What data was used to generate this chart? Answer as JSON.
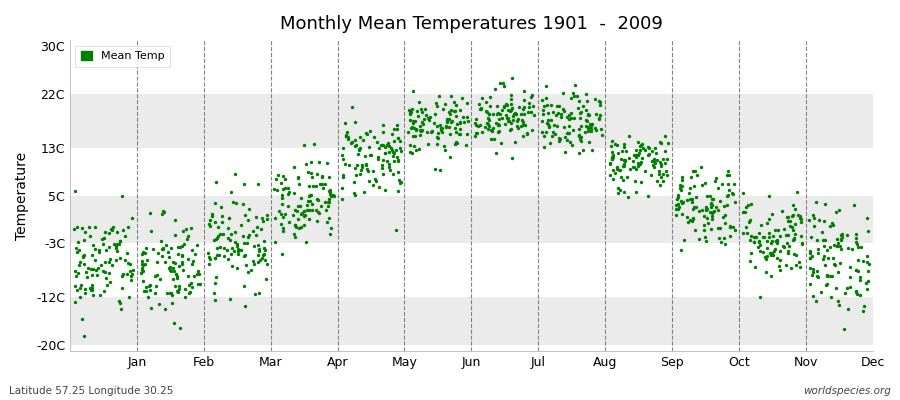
{
  "title": "Monthly Mean Temperatures 1901  -  2009",
  "ylabel": "Temperature",
  "yticks": [
    -20,
    -12,
    -3,
    5,
    13,
    22,
    30
  ],
  "ytick_labels": [
    "-20C",
    "-12C",
    "-3C",
    "5C",
    "13C",
    "22C",
    "30C"
  ],
  "ylim": [
    -21,
    31
  ],
  "months": [
    "Jan",
    "Feb",
    "Mar",
    "Apr",
    "May",
    "Jun",
    "Jul",
    "Aug",
    "Sep",
    "Oct",
    "Nov",
    "Dec"
  ],
  "dot_color": "#008000",
  "bg_color": "#ffffff",
  "band_colors": [
    "#ffffff",
    "#ebebeb",
    "#ffffff",
    "#ebebeb",
    "#ffffff",
    "#ebebeb"
  ],
  "legend_label": "Mean Temp",
  "bottom_left": "Latitude 57.25 Longitude 30.25",
  "bottom_right": "worldspecies.org",
  "monthly_means": [
    -6.5,
    -7.5,
    -2.5,
    4.5,
    11.5,
    16.5,
    18.5,
    17.0,
    10.5,
    3.5,
    -2.0,
    -5.5
  ],
  "monthly_stds": [
    4.5,
    4.5,
    4.0,
    3.5,
    3.5,
    2.5,
    2.5,
    2.5,
    2.5,
    3.5,
    3.5,
    4.5
  ],
  "n_years": 109
}
